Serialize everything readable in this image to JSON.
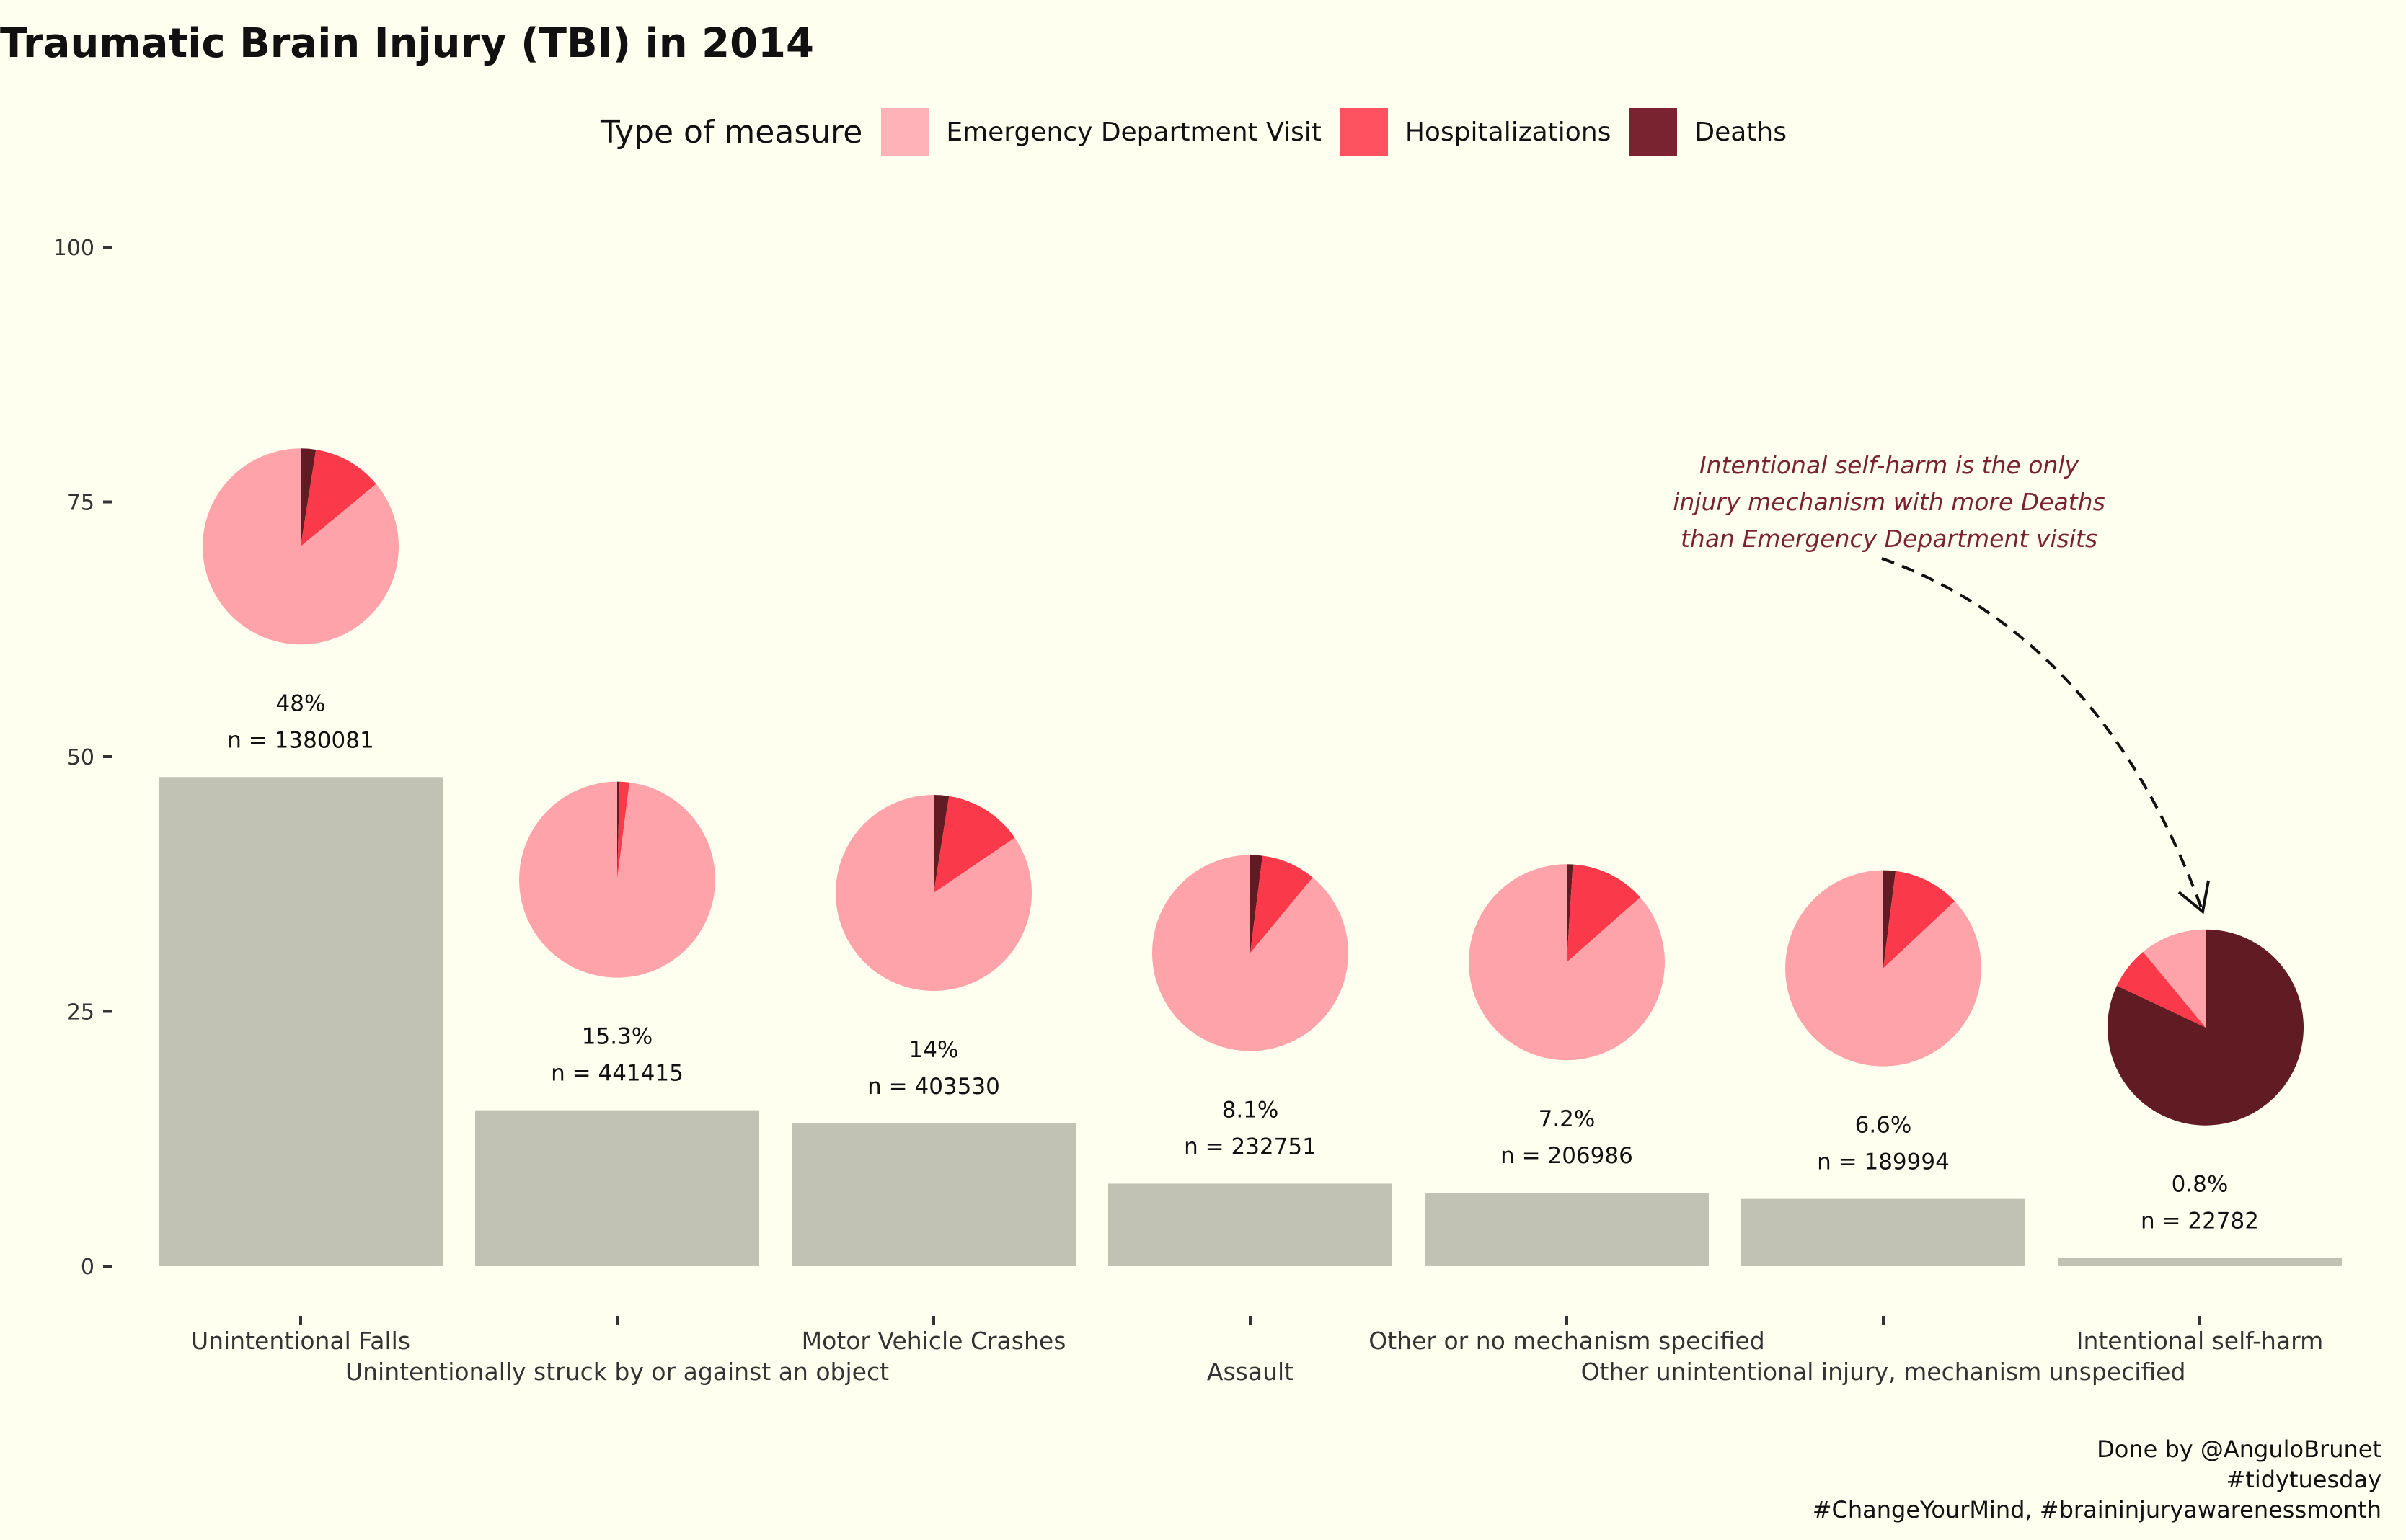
{
  "title": "Traumatic Brain Injury (TBI) in 2014",
  "legend": {
    "title": "Type of measure",
    "items": [
      {
        "label": "Emergency Department Visit",
        "color": "#FFB3B8"
      },
      {
        "label": "Hospitalizations",
        "color": "#FF5260"
      },
      {
        "label": "Deaths",
        "color": "#7A2330"
      }
    ]
  },
  "annotation": "Intentional self-harm is the only\ninjury mechanism with more Deaths\nthan Emergency Department visits",
  "caption": [
    "Done by @AnguloBrunet",
    "#tidytuesday",
    "#ChangeYourMind, #braininjuryawarenessmonth"
  ],
  "chart_data": {
    "type": "bar",
    "title": "Traumatic Brain Injury (TBI) in 2014",
    "xlabel": "",
    "ylabel": "",
    "ylim": [
      0,
      100
    ],
    "yticks": [
      0,
      25,
      50,
      75,
      100
    ],
    "grid": false,
    "legend_position": "top",
    "categories": [
      "Unintentional Falls",
      "Unintentionally struck by or against an object",
      "Motor Vehicle Crashes",
      "Assault",
      "Other or no mechanism specified",
      "Other unintentional injury, mechanism unspecified",
      "Intentional self-harm"
    ],
    "values": [
      48,
      15.3,
      14,
      8.1,
      7.2,
      6.6,
      0.8
    ],
    "bar_labels": [
      "48%",
      "15.3%",
      "14%",
      "8.1%",
      "7.2%",
      "6.6%",
      "0.8%"
    ],
    "n_labels": [
      "n = 1380081",
      "n = 441415",
      "n = 403530",
      "n = 232751",
      "n = 206986",
      "n = 189994",
      "n = 22782"
    ],
    "pie_series": [
      "Emergency Department Visit",
      "Hospitalizations",
      "Deaths"
    ],
    "pie_colors": [
      "#FFA3AB",
      "#FA3A4A",
      "#611B23"
    ],
    "pies": [
      [
        0.86,
        0.115,
        0.025
      ],
      [
        0.98,
        0.016,
        0.004
      ],
      [
        0.845,
        0.13,
        0.025
      ],
      [
        0.89,
        0.09,
        0.02
      ],
      [
        0.865,
        0.125,
        0.01
      ],
      [
        0.87,
        0.11,
        0.02
      ],
      [
        0.11,
        0.07,
        0.82
      ]
    ],
    "bar_color": "#C2C2B4"
  }
}
